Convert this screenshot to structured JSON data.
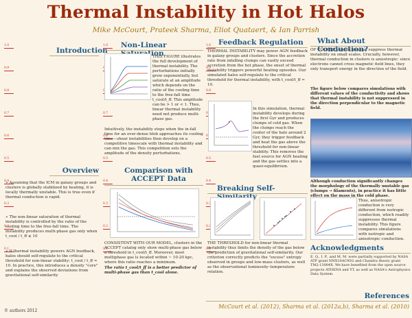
{
  "title": "Thermal Instability in Hot Halos",
  "authors": "Mike McCourt, Prateek Sharma, Eliot Quataert, & Ian Parrish",
  "copyright": "© authors 2012",
  "ruler_ticks": [
    "1.0",
    "0.9",
    "0.8",
    "0.7",
    "0.6",
    "0.5",
    "0.4",
    "0.3",
    "0.2",
    "0.1"
  ],
  "sections": {
    "introduction": "Introduction",
    "overview": "Overview",
    "nonlinear": "Non-Linear Saturation",
    "comparison": "Comparison with ACCEPT Data",
    "feedback": "Feedback Regulation",
    "selfsim": "Breaking Self-Similarity",
    "conduction": "What About Conduction?",
    "acknowledgments": "Acknowledgments",
    "references": "References"
  },
  "overview_bullets": [
    "Assuming that the ICM in galaxy groups and clusters is globally stabilized by heating, it is locally thermally unstable. This is true even if thermal conduction is rapid.",
    "The non-linear saturation of thermal instability is controlled by the ratio of the cooling time to the free-fall time. The instability produces multi-phase gas only when t_cool / t_ff ≲ 10",
    "If thermal instability powers AGN feedback, halos should self-regulate to the critical threshold for non-linear stability: t_cool / t_ff ≈ 10. In practice, this introduces a density \"core\" and explains the observed deviations from gravitational self-similarity"
  ],
  "nonlinear_text": "THIS FIGURE illustrates the full development of thermal instability. The perturbations initially grow exponentially, but saturate at an amplitude which depends on the ratio of the cooling time to the free-fall time t_cool/t_ff. This amplitude can be > 1 or < 1. Thus, linear thermal instability need not produce multi-phase gas.",
  "nonlinear_text2": "Intuitively, the instability stops when the in-fall time for an over-dense blob approaches its cooling time—shear instabilities then develop on a competitive timescale with thermal instability and can mix the gas. This competition sets the amplitude of the density perturbations.",
  "comparison_text": "CONSISTENT WITH OUR MODEL, clusters in the ACCEPT catalog only show multi-phase gas below a threshold in t_cool/t_ff. Moreover, most multiphase gas is located within ~ 10-20 kpc, where this ratio reaches a minimum.",
  "comparison_quote": "The ratio t_cool/t_ff is a better predictor of multi-phase gas than t_cool alone.",
  "feedback_text": "THERMAL INSTABILITY may power AGN feedback in galaxy groups and clusters. Since the accretion rate from infalling clumps can vastly exceed accretion from the hot phase, the onset of thermal instability triggers powerful heating episodes. Our simulated halos self-regulate to the critical threshold for thermal instability, with t_cool/t_ff ≈ 10.",
  "feedback_text2": "In this simulation, thermal instability develops during the first Gyr and produces clumps of cold gas. When the clumps reach the center of the halo around 2 Gyr, they trigger feedback and heat the gas above the threshold for non-linear stability. This removes the fuel source for AGN heating and the gas settles into a quasi-equilibrium.",
  "selfsim_text": "THE THRESHOLD for non-linear thermal instability thus limits the density of the gas below the prediction of gravitational self-similarity. Our criterion correctly predicts the \"excess\" entropy observed in groups and low-mass clusters, as well as the observational luminosity–temperature relation.",
  "conduction_text": "OF COURSE, conduction can suppress thermal instability on small scales. Crucially, however, thermal conduction in clusters is anisotropic: since electrons cannot cross magnetic field lines, they only transport energy in the direction of the field.",
  "conduction_text2": "The figure below compares simulations with different values of the conductivity and shows that thermal instability is not suppressed in the direction perpendicular to the magnetic field.",
  "conduction_text3": "Although conduction significantly changes the morphology of the thermally unstable gas (clumps → filaments), in practice it has little effect on the mass in the cold phase.",
  "conduction_text4": "Thus, anisotropic conduction is very different from isotropic conduction, which readily suppresses thermal instability. This figure compares simulations with isotropic and anisotropic conduction.",
  "ack_text": "E. Q., I. P., and M. M. were partially supported by NASA ATP grant NNX10AC95G and Chandra theory grant TM2-13004X. We have benefited from the open source projects ATHENA and YT, as well as NASA's Astrophysics Data System.",
  "references_line": "McCourt et al. (2012), Sharma et al. (2012a,b), Sharma et al. (2010)",
  "colors": {
    "title": "#9c2a0e",
    "section": "#1f5a8a",
    "accent": "#a07418",
    "background": "#fbf4e6"
  }
}
